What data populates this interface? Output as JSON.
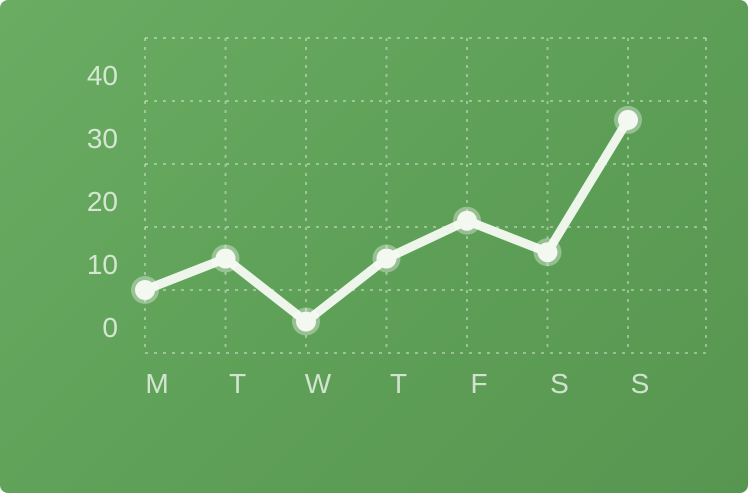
{
  "chart_data": {
    "type": "line",
    "categories": [
      "M",
      "T",
      "W",
      "T",
      "F",
      "S",
      "S"
    ],
    "series": [
      {
        "values": [
          10,
          15,
          5,
          15,
          21,
          16,
          37
        ]
      }
    ],
    "y_ticks": [
      "0",
      "10",
      "20",
      "30",
      "40"
    ],
    "ylim": [
      0,
      50
    ],
    "grid": true,
    "colors": {
      "background": "#62a55b",
      "line": "#eef6ec",
      "grid": "#ffffff"
    }
  }
}
